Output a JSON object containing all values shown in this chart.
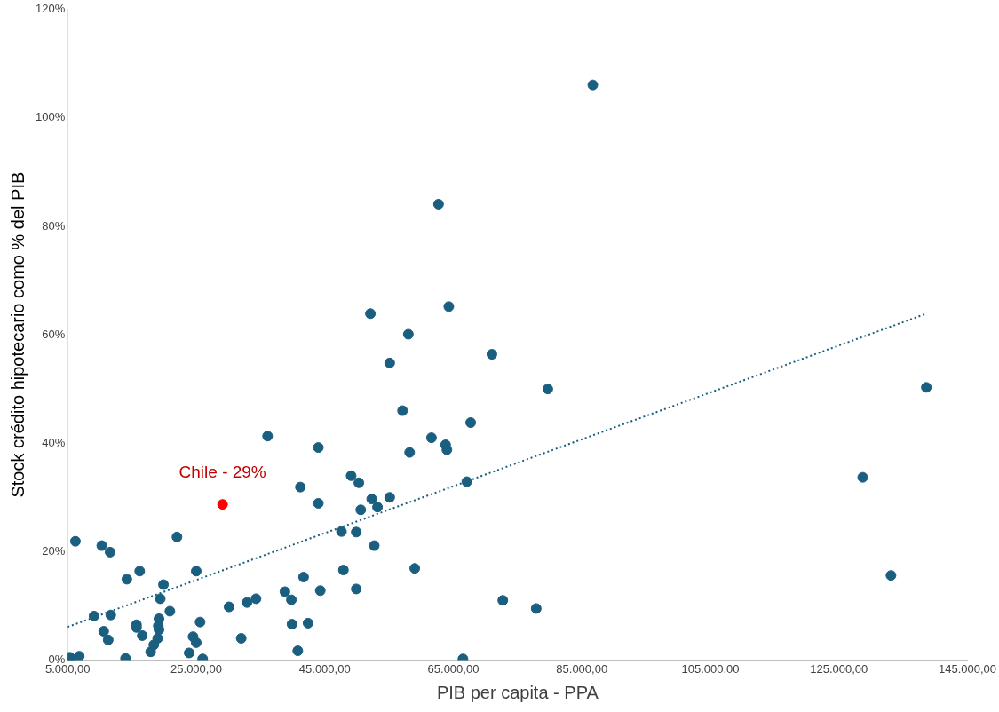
{
  "chart_data": {
    "type": "scatter",
    "xlabel": "PIB per capita - PPA",
    "ylabel": "Stock crédito hipotecario como % del PIB",
    "xlim": [
      5000,
      145000
    ],
    "xticks": [
      {
        "value": 5000,
        "label": "5.000,00"
      },
      {
        "value": 25000,
        "label": "25.000,00"
      },
      {
        "value": 45000,
        "label": "45.000,00"
      },
      {
        "value": 65000,
        "label": "65.000,00"
      },
      {
        "value": 85000,
        "label": "85.000,00"
      },
      {
        "value": 105000,
        "label": "105.000,00"
      },
      {
        "value": 125000,
        "label": "125.000,00"
      },
      {
        "value": 145000,
        "label": "145.000,00"
      }
    ],
    "ylim": [
      0,
      120
    ],
    "yticks": [
      {
        "value": 0,
        "label": "0%"
      },
      {
        "value": 20,
        "label": "20%"
      },
      {
        "value": 40,
        "label": "40%"
      },
      {
        "value": 60,
        "label": "60%"
      },
      {
        "value": 80,
        "label": "80%"
      },
      {
        "value": 100,
        "label": "100%"
      },
      {
        "value": 120,
        "label": "120%"
      }
    ],
    "grid": false,
    "legend": false,
    "marker": "circle",
    "series": [
      {
        "type": "scatter",
        "color": "#1a5e80",
        "x": [
          6200,
          10300,
          11600,
          22000,
          16200,
          14200,
          25000,
          19900,
          19400,
          9100,
          11700,
          20900,
          30100,
          32900,
          34300,
          19200,
          10600,
          15700,
          15700,
          19100,
          19200,
          25600,
          11300,
          16600,
          19000,
          18400,
          17900,
          24500,
          25000,
          32000,
          23900,
          26000,
          14000,
          5300,
          5500,
          6800,
          36100,
          44000,
          57100,
          61600,
          63800,
          64000,
          58200,
          67700,
          49100,
          50300,
          41200,
          44000,
          52300,
          53200,
          55100,
          50600,
          67100,
          47600,
          49900,
          52700,
          59000,
          47900,
          41700,
          38800,
          39800,
          44300,
          49900,
          39900,
          42400,
          40800,
          66500,
          86700,
          62700,
          64300,
          52100,
          58000,
          55100,
          71000,
          79700,
          138600,
          128700,
          133100,
          72700,
          77900
        ],
        "values": [
          21.9,
          21.1,
          19.9,
          22.7,
          16.4,
          14.9,
          16.4,
          13.9,
          11.3,
          8.1,
          8.3,
          9.0,
          9.8,
          10.6,
          11.3,
          7.6,
          5.3,
          6.5,
          6.0,
          6.3,
          5.6,
          7.0,
          3.7,
          4.5,
          4.0,
          2.8,
          1.5,
          4.3,
          3.2,
          4.0,
          1.3,
          0.2,
          0.3,
          0.5,
          0.3,
          0.7,
          41.3,
          39.2,
          46.0,
          41.0,
          39.7,
          38.8,
          38.3,
          43.8,
          34.0,
          32.7,
          31.9,
          28.9,
          29.7,
          28.2,
          30.0,
          27.7,
          32.9,
          23.7,
          23.6,
          21.1,
          16.9,
          16.6,
          15.3,
          12.6,
          11.1,
          12.8,
          13.1,
          6.6,
          6.8,
          1.7,
          0.2,
          106.1,
          84.1,
          65.2,
          63.9,
          60.1,
          54.8,
          56.4,
          50.0,
          50.3,
          33.7,
          15.6,
          11.0,
          9.5
        ]
      },
      {
        "type": "scatter",
        "color": "#ff0000",
        "x": [
          29100
        ],
        "values": [
          28.7
        ]
      },
      {
        "type": "line",
        "color": "#1a5e80",
        "line_style": "dotted",
        "marker": "none",
        "x": [
          5000,
          138600
        ],
        "values": [
          6.1,
          63.9
        ]
      }
    ],
    "annotations": [
      {
        "text": "Chile - 29%",
        "x": 29100,
        "y": 28.7
      }
    ]
  }
}
